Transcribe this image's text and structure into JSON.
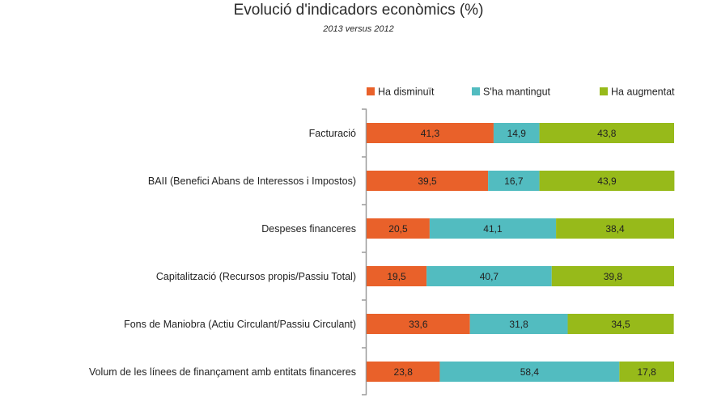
{
  "chart_data": {
    "type": "bar",
    "orientation": "horizontal",
    "stacked": true,
    "title": "Evolució d'indicadors econòmics (%)",
    "subtitle": "2013 versus 2012",
    "xlabel": "",
    "ylabel": "",
    "xlim": [
      0,
      100
    ],
    "grid": false,
    "legend_position": "top-right",
    "categories": [
      "Facturació",
      "BAII (Benefici Abans de Interessos i Impostos)",
      "Despeses financeres",
      "Capitalització (Recursos propis/Passiu Total)",
      "Fons de Maniobra (Actiu Circulant/Passiu Circulant)",
      "Volum de les línees de finançament amb entitats financeres"
    ],
    "series": [
      {
        "name": "Ha disminuït",
        "color": "#E9612A",
        "values": [
          41.3,
          39.5,
          20.5,
          19.5,
          33.6,
          23.8
        ],
        "labels": [
          "41,3",
          "39,5",
          "20,5",
          "19,5",
          "33,6",
          "23,8"
        ]
      },
      {
        "name": "S'ha mantingut",
        "color": "#52BCC0",
        "values": [
          14.9,
          16.7,
          41.1,
          40.7,
          31.8,
          58.4
        ],
        "labels": [
          "14,9",
          "16,7",
          "41,1",
          "40,7",
          "31,8",
          "58,4"
        ]
      },
      {
        "name": "Ha augmentat",
        "color": "#97BA1A",
        "values": [
          43.8,
          43.9,
          38.4,
          39.8,
          34.5,
          17.8
        ],
        "labels": [
          "43,8",
          "43,9",
          "38,4",
          "39,8",
          "34,5",
          "17,8"
        ]
      }
    ]
  }
}
